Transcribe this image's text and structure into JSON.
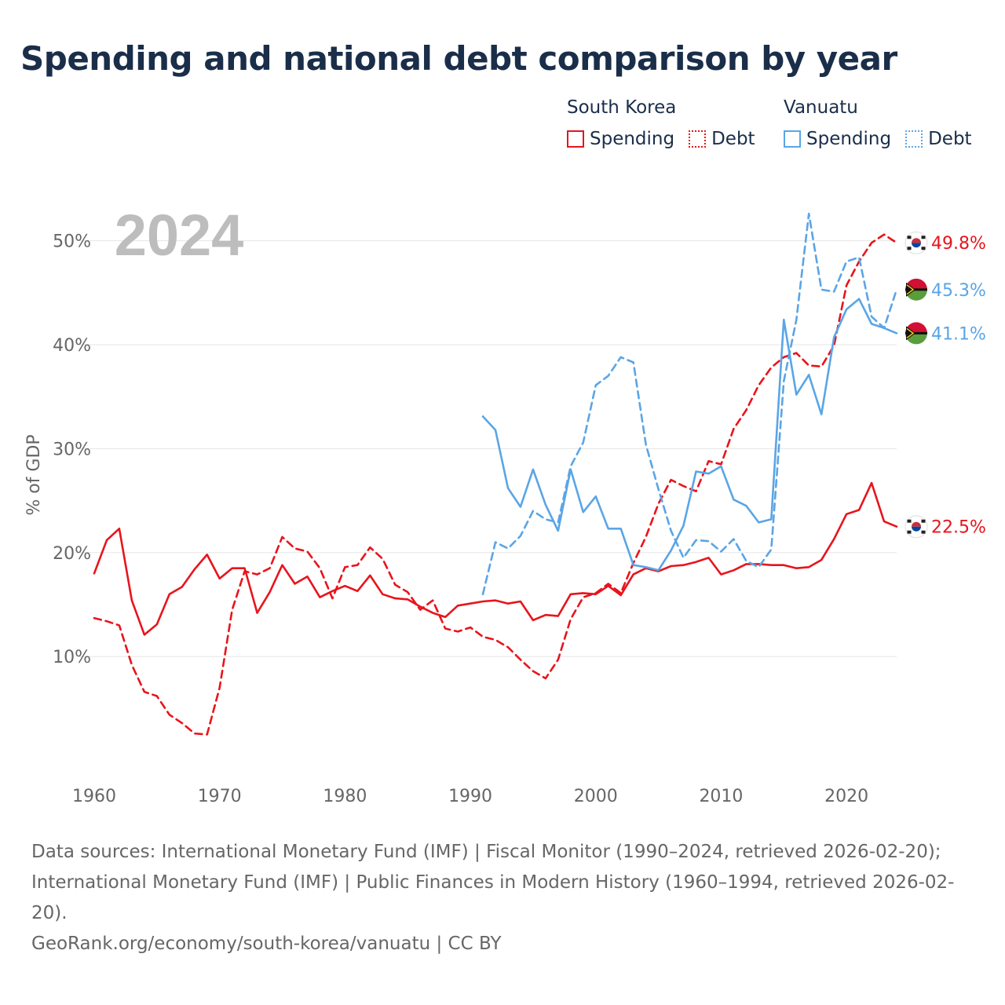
{
  "title": "Spending and national debt comparison by year",
  "legend": {
    "groups": [
      {
        "name": "South Korea",
        "items": [
          {
            "label": "Spending",
            "style": "solid",
            "color": "#e8141c"
          },
          {
            "label": "Debt",
            "style": "dotted",
            "color": "#e8141c"
          }
        ]
      },
      {
        "name": "Vanuatu",
        "items": [
          {
            "label": "Spending",
            "style": "solid",
            "color": "#5aa5e6"
          },
          {
            "label": "Debt",
            "style": "dotted",
            "color": "#5aa5e6"
          }
        ]
      }
    ]
  },
  "chart_data": {
    "type": "line",
    "year_label": "2024",
    "ylabel": "% of GDP",
    "xlim": [
      1960,
      2024
    ],
    "ylim": [
      0,
      53
    ],
    "x_ticks": [
      1960,
      1970,
      1980,
      1990,
      2000,
      2010,
      2020
    ],
    "y_ticks": [
      10,
      20,
      30,
      40,
      50
    ],
    "y_tick_labels": [
      "10%",
      "20%",
      "30%",
      "40%",
      "50%"
    ],
    "series": [
      {
        "name": "South Korea Spending",
        "country": "South Korea",
        "kind": "Spending",
        "color": "#e8141c",
        "dash": false,
        "start": 1960,
        "values": [
          18.0,
          21.2,
          22.3,
          15.4,
          12.1,
          13.1,
          16.0,
          16.7,
          18.4,
          19.8,
          17.5,
          18.5,
          18.5,
          14.2,
          16.2,
          18.8,
          17.0,
          17.7,
          15.7,
          16.3,
          16.8,
          16.3,
          17.8,
          16.0,
          15.6,
          15.5,
          14.8,
          14.2,
          13.8,
          14.9,
          15.1,
          15.3,
          15.4,
          15.1,
          15.3,
          13.5,
          14.0,
          13.9,
          16.0,
          16.1,
          16.0,
          16.8,
          15.9,
          17.9,
          18.5,
          18.2,
          18.7,
          18.8,
          19.1,
          19.5,
          17.9,
          18.3,
          18.9,
          18.9,
          18.8,
          18.8,
          18.5,
          18.6,
          19.3,
          21.3,
          23.7,
          24.1,
          26.7,
          23.0,
          22.5
        ],
        "end_label": "22.5%"
      },
      {
        "name": "South Korea Debt",
        "country": "South Korea",
        "kind": "Debt",
        "color": "#e8141c",
        "dash": true,
        "start": 1960,
        "values": [
          13.7,
          13.4,
          13.0,
          9.2,
          6.6,
          6.2,
          4.4,
          3.6,
          2.6,
          2.5,
          7.0,
          14.5,
          18.2,
          17.9,
          18.5,
          21.5,
          20.4,
          20.1,
          18.5,
          15.6,
          18.6,
          18.8,
          20.5,
          19.4,
          16.9,
          16.2,
          14.5,
          15.4,
          12.7,
          12.4,
          12.8,
          11.9,
          11.6,
          10.9,
          9.7,
          8.6,
          7.9,
          9.7,
          13.6,
          15.7,
          16.1,
          17.0,
          16.1,
          19.0,
          21.5,
          24.7,
          27.0,
          26.4,
          25.9,
          28.8,
          28.5,
          31.9,
          33.7,
          36.1,
          37.8,
          38.8,
          39.2,
          38.0,
          37.9,
          39.9,
          45.7,
          48.0,
          49.8,
          50.6,
          49.8
        ],
        "end_label": "49.8%"
      },
      {
        "name": "Vanuatu Spending",
        "country": "Vanuatu",
        "kind": "Spending",
        "color": "#5aa5e6",
        "dash": false,
        "start": 1991,
        "values": [
          33.1,
          31.8,
          26.2,
          24.4,
          28.0,
          24.6,
          22.1,
          28.0,
          23.9,
          25.4,
          22.3,
          22.3,
          18.8,
          18.6,
          18.3,
          20.2,
          22.6,
          27.8,
          27.6,
          28.3,
          25.1,
          24.5,
          22.9,
          23.2,
          42.4,
          35.2,
          37.1,
          33.3,
          40.7,
          43.4,
          44.4,
          42.0,
          41.6,
          41.1
        ],
        "end_label": "41.1%"
      },
      {
        "name": "Vanuatu Debt",
        "country": "Vanuatu",
        "kind": "Debt",
        "color": "#5aa5e6",
        "dash": true,
        "start": 1991,
        "values": [
          16.0,
          21.0,
          20.4,
          21.6,
          24.0,
          23.2,
          22.9,
          28.3,
          30.6,
          36.1,
          37.0,
          38.8,
          38.3,
          30.4,
          26.1,
          22.1,
          19.5,
          21.2,
          21.1,
          20.1,
          21.3,
          19.2,
          18.6,
          20.3,
          36.5,
          42.4,
          52.6,
          45.3,
          45.1,
          48.0,
          48.4,
          42.7,
          41.6,
          45.3
        ],
        "end_label": "45.3%"
      }
    ]
  },
  "footer": {
    "sources": "Data sources: International Monetary Fund (IMF) | Fiscal Monitor (1990–2024, retrieved 2026-02-20); International Monetary Fund (IMF) | Public Finances in Modern History (1960–1994, retrieved 2026-02-20).",
    "credit": "GeoRank.org/economy/south-korea/vanuatu | CC BY"
  }
}
